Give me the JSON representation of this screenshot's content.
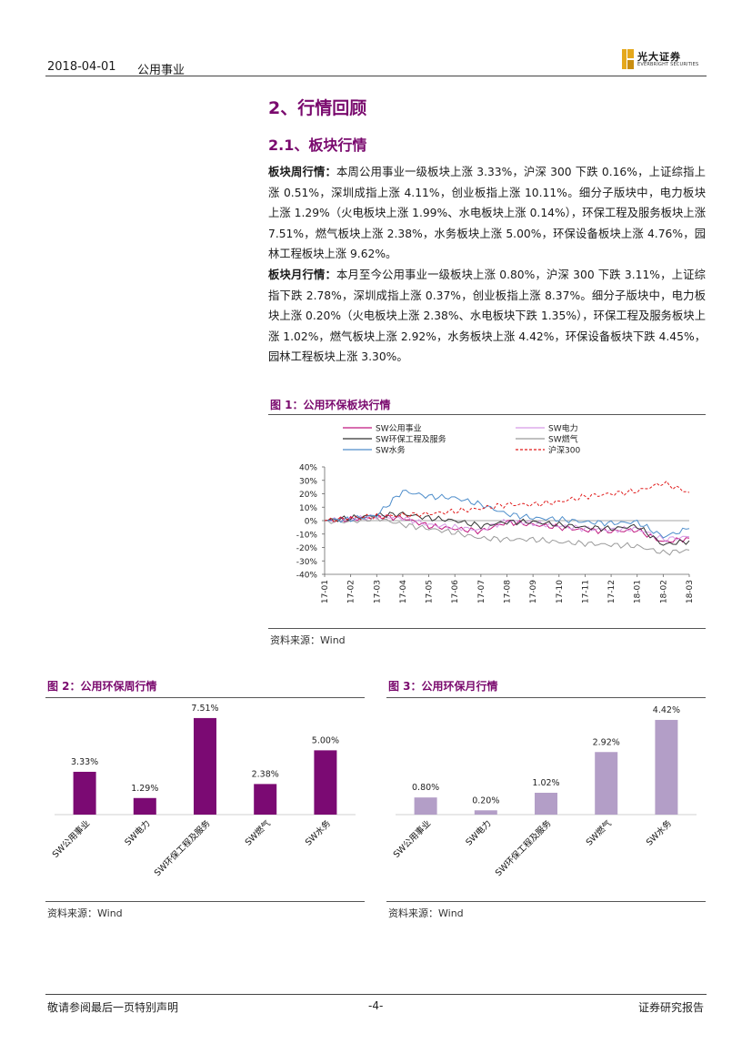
{
  "header": {
    "date": "2018-04-01",
    "sector": "公用事业",
    "logo_cn": "光大证券",
    "logo_en": "EVERBRIGHT SECURITIES"
  },
  "section": {
    "title": "2、行情回顾",
    "subtitle": "2.1、板块行情"
  },
  "paragraphs": [
    {
      "label": "板块周行情：",
      "text": "本周公用事业一级板块上涨 3.33%，沪深 300 下跌 0.16%，上证综指上涨 0.51%，深圳成指上涨 4.11%，创业板指上涨 10.11%。细分子版块中，电力板块上涨 1.29%（火电板块上涨 1.99%、水电板块上涨 0.14%），环保工程及服务板块上涨 7.51%，燃气板块上涨 2.38%，水务板块上涨 5.00%，环保设备板块上涨 4.76%，园林工程板块上涨 9.62%。"
    },
    {
      "label": "板块月行情：",
      "text": "本月至今公用事业一级板块上涨 0.80%，沪深 300 下跌 3.11%，上证综指下跌 2.78%，深圳成指上涨 0.37%，创业板指上涨 8.37%。细分子版块中，电力板块上涨 0.20%（火电板块上涨 2.38%、水电板块下跌 1.35%），环保工程及服务板块上涨 1.02%，燃气板块上涨 2.92%，水务板块上涨 4.42%，环保设备板块下跌 4.45%，园林工程板块上涨 3.30%。"
    }
  ],
  "figures": {
    "fig1_title": "图 1：公用环保板块行情",
    "fig1_source": "资料来源：Wind",
    "fig2_title": "图 2：公用环保周行情",
    "fig2_source": "资料来源：Wind",
    "fig3_title": "图 3：公用环保月行情",
    "fig3_source": "资料来源：Wind"
  },
  "colors": {
    "brand": "#7a0a6e",
    "bar_weekly": "#7b0a73",
    "bar_monthly": "#b39ec7"
  },
  "chart_data": [
    {
      "type": "line",
      "title": "图 1：公用环保板块行情",
      "x": [
        "17-01",
        "17-02",
        "17-03",
        "17-04",
        "17-05",
        "17-06",
        "17-07",
        "17-08",
        "17-09",
        "17-10",
        "17-11",
        "17-12",
        "18-01",
        "18-02",
        "18-03"
      ],
      "yticks": [
        "40%",
        "30%",
        "20%",
        "10%",
        "0%",
        "-10%",
        "-20%",
        "-30%",
        "-40%"
      ],
      "ylim": [
        -40,
        40
      ],
      "series": [
        {
          "name": "SW公用事业",
          "color": "#c0177f",
          "dash": "",
          "values": [
            0,
            1,
            3,
            2,
            -4,
            -6,
            -8,
            -1,
            -3,
            -5,
            -7,
            -8,
            -7,
            -16,
            -13
          ]
        },
        {
          "name": "SW电力",
          "color": "#d79be6",
          "dash": "",
          "values": [
            0,
            1,
            3,
            2,
            -3,
            -5,
            -7,
            0,
            -2,
            -4,
            -6,
            -7,
            -6,
            -14,
            -12
          ]
        },
        {
          "name": "SW环保工程及服务",
          "color": "#333333",
          "dash": "",
          "values": [
            0,
            2,
            4,
            5,
            2,
            0,
            -4,
            -1,
            -1,
            -3,
            -5,
            -6,
            -4,
            -18,
            -15
          ]
        },
        {
          "name": "SW燃气",
          "color": "#9a9a9a",
          "dash": "",
          "values": [
            0,
            -1,
            2,
            -3,
            -6,
            -9,
            -13,
            -14,
            -14,
            -16,
            -17,
            -18,
            -19,
            -24,
            -22
          ]
        },
        {
          "name": "SW水务",
          "color": "#4f8ecb",
          "dash": "",
          "values": [
            0,
            1,
            4,
            22,
            18,
            17,
            12,
            5,
            2,
            1,
            -1,
            -2,
            -1,
            -12,
            -6
          ]
        },
        {
          "name": "沪深300",
          "color": "#e01b1b",
          "dash": "3 2",
          "values": [
            0,
            2,
            3,
            4,
            5,
            7,
            9,
            12,
            12,
            14,
            18,
            20,
            22,
            28,
            21
          ]
        }
      ]
    },
    {
      "type": "bar",
      "title": "图 2：公用环保周行情",
      "categories": [
        "SW公用事业",
        "SW电力",
        "SW环保工程及服务",
        "SW燃气",
        "SW水务"
      ],
      "values": [
        3.33,
        1.29,
        7.51,
        2.38,
        5.0
      ],
      "labels": [
        "3.33%",
        "1.29%",
        "7.51%",
        "2.38%",
        "5.00%"
      ],
      "ylim": [
        0,
        8
      ]
    },
    {
      "type": "bar",
      "title": "图 3：公用环保月行情",
      "categories": [
        "SW公用事业",
        "SW电力",
        "SW环保工程及服务",
        "SW燃气",
        "SW水务"
      ],
      "values": [
        0.8,
        0.2,
        1.02,
        2.92,
        4.42
      ],
      "labels": [
        "0.80%",
        "0.20%",
        "1.02%",
        "2.92%",
        "4.42%"
      ],
      "ylim": [
        0,
        4.8
      ]
    }
  ],
  "footer": {
    "disclaimer": "敬请参阅最后一页特别声明",
    "page": "-4-",
    "report_type": "证券研究报告"
  }
}
